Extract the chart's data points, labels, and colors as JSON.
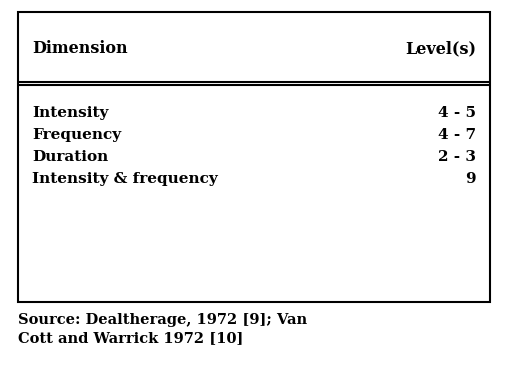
{
  "header_col1": "Dimension",
  "header_col2": "Level(s)",
  "rows": [
    [
      "Intensity",
      "4 - 5"
    ],
    [
      "Frequency",
      "4 - 7"
    ],
    [
      "Duration",
      "2 - 3"
    ],
    [
      "Intensity & frequency",
      "9"
    ]
  ],
  "source_line1": "Source: Dealtherage, 1972 [9]; Van",
  "source_line2": "Cott and Warrick 1972 [10]",
  "bg_color": "#ffffff",
  "text_color": "#000000",
  "border_color": "#000000",
  "header_fontsize": 11.5,
  "body_fontsize": 11.0,
  "source_fontsize": 10.5,
  "fig_width": 5.2,
  "fig_height": 3.8,
  "dpi": 100
}
